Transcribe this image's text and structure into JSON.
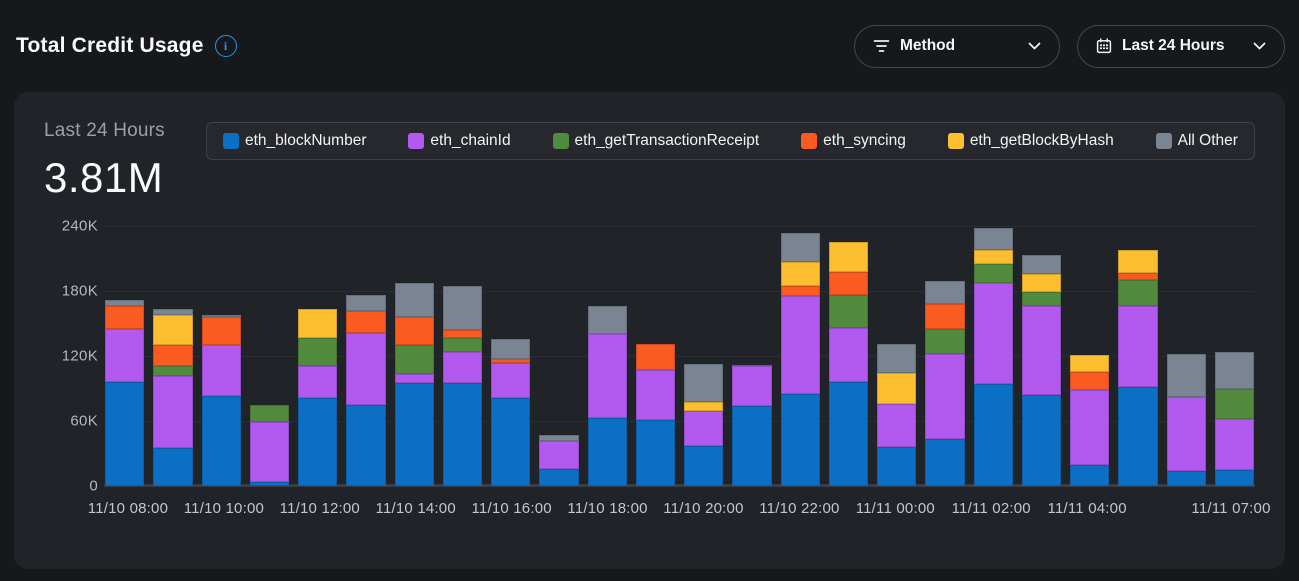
{
  "header": {
    "title": "Total Credit Usage",
    "accent_blue": "#1d9bf0",
    "method_dropdown": {
      "label": "Method"
    },
    "range_dropdown": {
      "label": "Last 24 Hours"
    }
  },
  "summary": {
    "period_label": "Last 24 Hours",
    "total": "3.81M"
  },
  "chart_data": {
    "type": "bar",
    "stacked": true,
    "title": "Total Credit Usage - Last 24 Hours",
    "y_unit": "credits (values in thousands)",
    "ylim_thousands": [
      0,
      240
    ],
    "yticks": [
      "240K",
      "180K",
      "120K",
      "60K",
      "0"
    ],
    "grid": "horizontal",
    "legend_position": "top",
    "categories": [
      "11/10 08:00",
      "11/10 09:00",
      "11/10 10:00",
      "11/10 11:00",
      "11/10 12:00",
      "11/10 13:00",
      "11/10 14:00",
      "11/10 15:00",
      "11/10 16:00",
      "11/10 17:00",
      "11/10 18:00",
      "11/10 19:00",
      "11/10 20:00",
      "11/10 21:00",
      "11/10 22:00",
      "11/10 23:00",
      "11/11 00:00",
      "11/11 01:00",
      "11/11 02:00",
      "11/11 03:00",
      "11/11 04:00",
      "11/11 05:00",
      "11/11 06:00",
      "11/11 07:00"
    ],
    "x_axis_labels": [
      "11/10 08:00",
      "",
      "11/10 10:00",
      "",
      "11/10 12:00",
      "",
      "11/10 14:00",
      "",
      "11/10 16:00",
      "",
      "11/10 18:00",
      "",
      "11/10 20:00",
      "",
      "11/10 22:00",
      "",
      "11/11 00:00",
      "",
      "11/11 02:00",
      "",
      "11/11 04:00",
      "",
      "",
      "11/11 07:00"
    ],
    "series": [
      {
        "name": "eth_blockNumber",
        "color": "#0b70c5",
        "values": [
          96,
          35,
          83,
          4,
          81,
          75,
          95,
          95,
          81,
          16,
          63,
          61,
          37,
          74,
          85,
          96,
          36,
          43,
          94,
          84,
          19,
          91,
          14,
          15
        ]
      },
      {
        "name": "eth_chainId",
        "color": "#b259ef",
        "values": [
          49,
          67,
          47,
          55,
          30,
          66,
          8,
          29,
          33,
          26,
          77,
          46,
          32,
          37,
          90,
          50,
          40,
          79,
          93,
          82,
          70,
          75,
          68,
          47
        ]
      },
      {
        "name": "eth_getTransactionReceipt",
        "color": "#528b3d",
        "values": [
          0,
          9,
          0,
          16,
          26,
          0,
          27,
          13,
          0,
          0,
          0,
          0,
          0,
          1,
          0,
          30,
          0,
          23,
          18,
          13,
          0,
          24,
          0,
          28
        ]
      },
      {
        "name": "eth_syncing",
        "color": "#fb5a20",
        "values": [
          21,
          19,
          26,
          0,
          0,
          21,
          26,
          7,
          3,
          0,
          0,
          24,
          0,
          0,
          10,
          22,
          0,
          23,
          0,
          0,
          16,
          7,
          0,
          0
        ]
      },
      {
        "name": "eth_getBlockByHash",
        "color": "#fdbf30",
        "values": [
          0,
          28,
          0,
          0,
          26,
          0,
          0,
          0,
          0,
          0,
          0,
          0,
          9,
          0,
          22,
          27,
          28,
          0,
          13,
          17,
          16,
          21,
          0,
          0
        ]
      },
      {
        "name": "All Other",
        "color": "#7b8493",
        "values": [
          6,
          5,
          2,
          0,
          0,
          14,
          31,
          41,
          19,
          5,
          26,
          0,
          35,
          0,
          27,
          0,
          27,
          21,
          20,
          17,
          0,
          0,
          40,
          34
        ]
      }
    ]
  }
}
